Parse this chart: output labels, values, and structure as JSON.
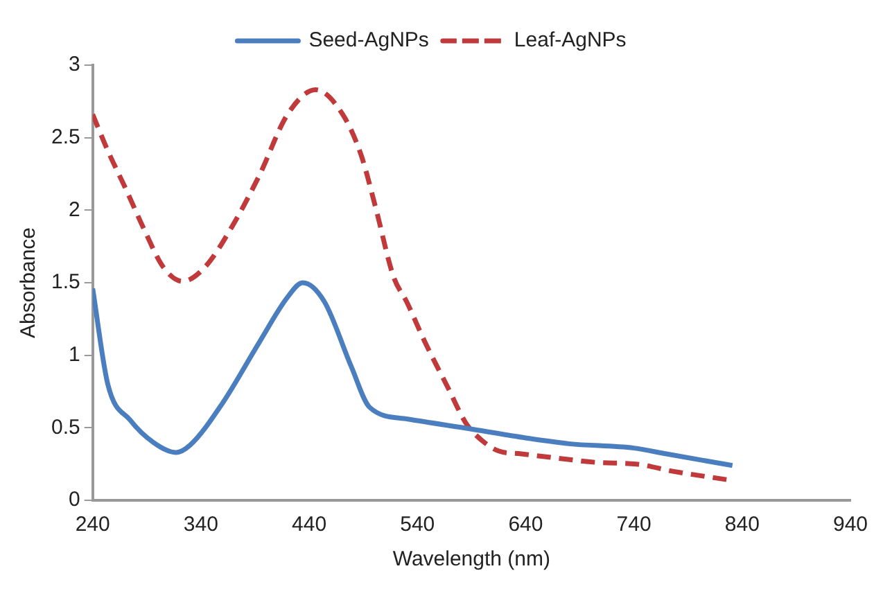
{
  "chart_data": {
    "type": "line",
    "xlabel": "Wavelength (nm)",
    "ylabel": "Absorbance",
    "xlim": [
      240,
      940
    ],
    "xticks": [
      240,
      340,
      440,
      540,
      640,
      740,
      840,
      940
    ],
    "ylim": [
      0,
      3
    ],
    "yticks": [
      0,
      0.5,
      1,
      1.5,
      2,
      2.5,
      3
    ],
    "grid": false,
    "legend": "top",
    "marker": "none",
    "series": [
      {
        "name": "Seed-AgNPs",
        "color": "#4a7ebf",
        "line_style": "solid",
        "x": [
          240,
          254,
          275,
          296,
          317,
          330,
          360,
          394,
          420,
          434,
          454,
          479,
          496,
          531,
          591,
          640,
          680,
          740,
          770,
          831
        ],
        "values": [
          1.46,
          0.8,
          0.55,
          0.4,
          0.33,
          0.38,
          0.67,
          1.09,
          1.4,
          1.5,
          1.37,
          0.92,
          0.64,
          0.56,
          0.49,
          0.43,
          0.39,
          0.36,
          0.32,
          0.24
        ]
      },
      {
        "name": "Leaf-AgNPs",
        "color": "#c0393b",
        "line_style": "dashed",
        "x": [
          240,
          254,
          271,
          288,
          305,
          323,
          344,
          369,
          394,
          420,
          446,
          471,
          488,
          501,
          518,
          530,
          547,
          568,
          585,
          600,
          615,
          636,
          670,
          708,
          742,
          776,
          828
        ],
        "values": [
          2.66,
          2.41,
          2.14,
          1.86,
          1.61,
          1.51,
          1.61,
          1.89,
          2.24,
          2.66,
          2.83,
          2.66,
          2.38,
          2.03,
          1.54,
          1.37,
          1.09,
          0.78,
          0.53,
          0.41,
          0.34,
          0.32,
          0.29,
          0.26,
          0.25,
          0.2,
          0.14
        ]
      }
    ]
  }
}
